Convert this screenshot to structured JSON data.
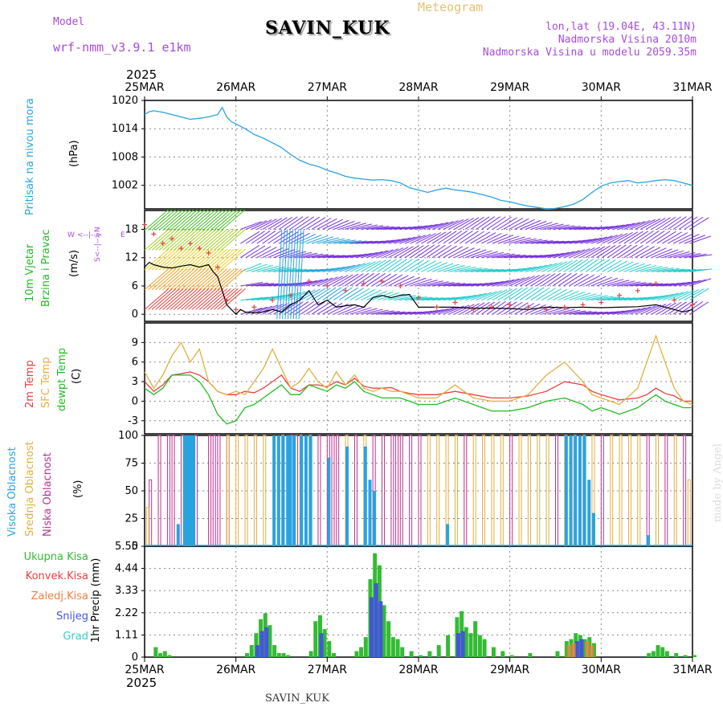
{
  "header": {
    "model_label": "Model",
    "model_name": "wrf-nmm_v3.9.1 e1km",
    "station": "SAVIN_KUK",
    "meteogram": "Meteogram",
    "lonlat": "lon,lat (19.04E, 43.11N)",
    "altitude": "Nadmorska Visina 2010m",
    "model_altitude": "Nadmorska Visina u modelu 2059.35m"
  },
  "footer": {
    "station": "SAVIN_KUK",
    "watermark": "made by Angel"
  },
  "time_axis": {
    "year": "2025",
    "labels": [
      "25MAR",
      "26MAR",
      "27MAR",
      "28MAR",
      "29MAR",
      "30MAR",
      "31MAR"
    ]
  },
  "panel_labels": {
    "pressure": [
      "Pritisak na nivou mora",
      "(hPa)"
    ],
    "wind": [
      "10m Vjetar",
      "Brzina i Pravac",
      "(m/s)"
    ],
    "compass": [
      "W",
      "<--|-->",
      "E",
      "S<--|-->N"
    ],
    "temp": [
      "2m Temp",
      "SFC Temp",
      "dewpt Temp",
      "(C)"
    ],
    "cloud": [
      "Visoka Oblacnost",
      "Srednja Oblacnost",
      "Niska Oblacnost",
      "(%)"
    ],
    "precip_legend": [
      "Ukupna Kisa",
      "Konvek.Kisa",
      "Zaledj.Kisa",
      "Snijeg",
      "Grad"
    ],
    "precip_unit": "1hr Precip (mm)"
  },
  "colors": {
    "pressure": "#29a3e0",
    "wind_speed": "#000000",
    "gust": "#e84040",
    "t2m": "#e84040",
    "tsfc": "#e0b040",
    "dewpt": "#22bb22",
    "cloud_high": "#29a3e0",
    "cloud_mid": "#e0b040",
    "cloud_low": "#c03090",
    "rain_total": "#33bb33",
    "rain_conv": "#e84040",
    "rain_freez": "#f08040",
    "snow": "#4455dd",
    "hail": "#33cccc"
  },
  "chart_data": [
    {
      "type": "line",
      "panel": "pressure",
      "ylabel": "(hPa)",
      "ylim": [
        997,
        1020
      ],
      "yticks": [
        1002,
        1008,
        1014,
        1020
      ],
      "x_days": [
        0,
        0.05,
        0.1,
        0.2,
        0.3,
        0.4,
        0.5,
        0.6,
        0.7,
        0.8,
        0.85,
        0.9,
        0.95,
        1.0,
        1.1,
        1.2,
        1.3,
        1.4,
        1.5,
        1.6,
        1.7,
        1.8,
        1.9,
        2.0,
        2.1,
        2.2,
        2.3,
        2.4,
        2.5,
        2.6,
        2.7,
        2.8,
        2.9,
        3.0,
        3.1,
        3.2,
        3.3,
        3.4,
        3.5,
        3.6,
        3.7,
        3.8,
        3.9,
        4.0,
        4.1,
        4.2,
        4.3,
        4.4,
        4.5,
        4.6,
        4.7,
        4.8,
        4.9,
        5.0,
        5.1,
        5.2,
        5.3,
        5.4,
        5.5,
        5.6,
        5.7,
        5.8,
        5.9,
        6.0
      ],
      "values": [
        1017,
        1017.6,
        1017.8,
        1017.5,
        1017,
        1016.5,
        1016,
        1016.2,
        1016.5,
        1017,
        1018.5,
        1016.5,
        1015.5,
        1015,
        1014,
        1012.8,
        1012,
        1011,
        1010,
        1008.5,
        1007.3,
        1006.5,
        1006,
        1005.2,
        1004.6,
        1003.9,
        1003.5,
        1003.3,
        1003.1,
        1003.2,
        1003,
        1002.5,
        1001.5,
        1001,
        1000.5,
        1001,
        1001.4,
        1001,
        1000.8,
        1000.5,
        1000,
        999.5,
        998.8,
        998.5,
        998,
        997.6,
        997.3,
        997,
        997.1,
        997.5,
        998,
        999,
        1000.5,
        1001.8,
        1002.5,
        1002.8,
        1003,
        1002.5,
        1002.7,
        1003,
        1003.2,
        1003,
        1002.5,
        1002
      ]
    },
    {
      "type": "line",
      "panel": "wind",
      "ylabel": "(m/s)",
      "ylim": [
        -1.5,
        22
      ],
      "yticks": [
        0,
        6,
        12,
        18
      ],
      "series": [
        {
          "x_days": [
            0,
            0.05,
            0.1,
            0.2,
            0.3,
            0.4,
            0.5,
            0.6,
            0.7,
            0.75,
            0.8,
            0.85,
            0.9,
            0.95,
            1.0,
            1.05,
            1.1,
            1.2,
            1.3,
            1.4,
            1.5,
            1.6,
            1.7,
            1.8,
            1.9,
            2.0,
            2.1,
            2.2,
            2.3,
            2.4,
            2.5,
            2.6,
            2.7,
            2.8,
            2.9,
            3.0,
            3.2,
            3.4,
            3.6,
            3.8,
            4.0,
            4.2,
            4.4,
            4.6,
            4.8,
            5.0,
            5.2,
            5.4,
            5.6,
            5.7,
            5.8,
            5.9,
            6.0
          ],
          "values": [
            10,
            11,
            10.5,
            10,
            9.8,
            10.2,
            10.5,
            10,
            10.5,
            9,
            8,
            5,
            2,
            1,
            0,
            1,
            0.5,
            0.3,
            0.5,
            1,
            0.5,
            2,
            3,
            5,
            2,
            3,
            1.5,
            1.8,
            2,
            1.5,
            3.5,
            4,
            3.5,
            4,
            4.2,
            1.5,
            1.5,
            1.5,
            1.3,
            1.3,
            1.2,
            1,
            1.5,
            1.4,
            1.5,
            1.4,
            1.5,
            1.6,
            2,
            1.5,
            1,
            0.5,
            1
          ]
        },
        {
          "x_days": [
            0,
            0.1,
            0.2,
            0.3,
            0.4,
            0.5,
            0.6,
            0.7,
            0.8,
            0.9,
            1.0,
            1.2,
            1.4,
            1.6,
            1.8,
            2.0,
            2.2,
            2.4,
            2.6,
            2.8,
            3.0,
            3.2,
            3.4,
            3.6,
            3.8,
            4.0,
            4.2,
            4.4,
            4.6,
            4.8,
            5.0,
            5.2,
            5.4,
            5.6,
            5.8,
            6.0
          ],
          "values": [
            19,
            17,
            15,
            16,
            14,
            15,
            14,
            13,
            10,
            3,
            1,
            1.5,
            3,
            4,
            7,
            6,
            5,
            6.5,
            7,
            6,
            3.5,
            1.5,
            2.5,
            1,
            1.5,
            2,
            1.5,
            1,
            1.5,
            2,
            2.5,
            4,
            5,
            6.5,
            3,
            2
          ]
        }
      ]
    },
    {
      "type": "line",
      "panel": "temperature",
      "ylabel": "(C)",
      "ylim": [
        -5,
        12
      ],
      "yticks": [
        -3,
        0,
        3,
        6,
        9
      ],
      "x_days": [
        0,
        0.1,
        0.2,
        0.3,
        0.4,
        0.5,
        0.6,
        0.7,
        0.8,
        0.9,
        1.0,
        1.1,
        1.2,
        1.3,
        1.4,
        1.5,
        1.6,
        1.7,
        1.8,
        1.9,
        2.0,
        2.1,
        2.2,
        2.3,
        2.4,
        2.5,
        2.6,
        2.7,
        2.8,
        2.9,
        3.0,
        3.2,
        3.4,
        3.6,
        3.8,
        4.0,
        4.2,
        4.4,
        4.6,
        4.8,
        4.9,
        5.0,
        5.2,
        5.4,
        5.5,
        5.6,
        5.7,
        5.8,
        5.9,
        6.0
      ],
      "series": [
        {
          "name": "2m Temp",
          "values": [
            3,
            1.5,
            2.5,
            4,
            4.2,
            4.5,
            4,
            3,
            1.5,
            1,
            1,
            1.5,
            1.3,
            2,
            3,
            4,
            2,
            1.5,
            2.5,
            2.5,
            2.2,
            3,
            2.5,
            3.5,
            2.3,
            2,
            2,
            2.1,
            1.5,
            1.2,
            1,
            1,
            1.5,
            1,
            0.5,
            0.5,
            0.8,
            1.5,
            3,
            2.5,
            1.5,
            1,
            0.2,
            0.5,
            1,
            2,
            1.2,
            0.8,
            0,
            0
          ]
        },
        {
          "name": "SFC Temp",
          "values": [
            4.5,
            2,
            4,
            7,
            9,
            6,
            8,
            3,
            1.5,
            1,
            1.5,
            1,
            3,
            5,
            8,
            5,
            2,
            3,
            5,
            3,
            2,
            4.5,
            2.5,
            4,
            2,
            1.5,
            2,
            1.5,
            1.5,
            1,
            0.5,
            0.5,
            2.5,
            0.5,
            0,
            0,
            1,
            4,
            6,
            3,
            1,
            0.5,
            -0.5,
            2,
            6,
            10,
            6,
            2,
            0,
            -0.5
          ]
        },
        {
          "name": "dewpt Temp",
          "values": [
            2,
            1,
            2,
            4,
            4,
            4,
            3,
            1,
            -2,
            -3.5,
            -3,
            -1,
            -0.5,
            0.5,
            1.5,
            2.5,
            1,
            1,
            2.5,
            2,
            1.5,
            2.5,
            2,
            3,
            1.5,
            1,
            0.5,
            0.5,
            0.5,
            0,
            -0.5,
            -0.5,
            0.5,
            -0.5,
            -1.5,
            -1.5,
            -1,
            0,
            0.5,
            -0.5,
            -1.5,
            -1,
            -2,
            -1,
            0,
            1,
            0,
            -0.5,
            -1,
            -1
          ]
        }
      ]
    },
    {
      "type": "bar",
      "panel": "cloud",
      "ylabel": "(%)",
      "ylim": [
        0,
        100
      ],
      "yticks": [
        0,
        25,
        50,
        75,
        100
      ],
      "series": [
        {
          "name": "Niska Oblacnost",
          "x_days": [
            0.05,
            0.15,
            0.25,
            0.3,
            0.4,
            0.55,
            0.7,
            0.75,
            0.8,
            0.9,
            1.6,
            1.65,
            1.9,
            2.0,
            2.05,
            2.1,
            2.3,
            2.5,
            2.6,
            2.7,
            2.75,
            2.8,
            2.9,
            3.0,
            3.5,
            4.0,
            4.5,
            5.0,
            5.5,
            5.7,
            5.9
          ],
          "values": [
            60,
            100,
            100,
            100,
            100,
            100,
            100,
            100,
            100,
            100,
            100,
            100,
            100,
            100,
            100,
            100,
            100,
            100,
            100,
            100,
            100,
            100,
            100,
            100,
            100,
            100,
            100,
            100,
            100,
            100,
            100
          ]
        },
        {
          "name": "Srednja Oblacnost",
          "x_days": [
            0.02,
            0.9,
            1.0,
            1.1,
            1.2,
            1.3,
            1.5,
            1.7,
            1.8,
            2.2,
            2.4,
            3.1,
            3.2,
            3.3,
            3.4,
            3.6,
            3.7,
            3.8,
            3.9,
            4.1,
            4.2,
            4.3,
            4.4,
            4.6,
            4.7,
            4.8,
            4.9,
            5.1,
            5.2,
            5.3,
            5.4,
            5.6,
            5.8,
            5.95
          ],
          "values": [
            35,
            100,
            100,
            100,
            100,
            100,
            100,
            100,
            100,
            100,
            100,
            100,
            100,
            100,
            100,
            100,
            100,
            100,
            100,
            100,
            100,
            100,
            100,
            100,
            100,
            100,
            100,
            100,
            100,
            100,
            100,
            100,
            100,
            60
          ]
        },
        {
          "name": "Visoka Oblacnost",
          "x_days": [
            0.35,
            0.42,
            0.45,
            0.48,
            0.5,
            0.52,
            1.4,
            1.45,
            1.5,
            1.55,
            1.58,
            1.62,
            1.7,
            1.75,
            1.8,
            2.0,
            2.2,
            2.4,
            2.45,
            2.5,
            3.3,
            4.6,
            4.65,
            4.7,
            4.75,
            4.8,
            4.85,
            4.9,
            5.5
          ],
          "values": [
            20,
            100,
            100,
            100,
            100,
            100,
            100,
            100,
            100,
            100,
            100,
            100,
            100,
            100,
            100,
            80,
            90,
            90,
            60,
            50,
            20,
            100,
            100,
            100,
            100,
            100,
            60,
            30,
            10
          ]
        }
      ]
    },
    {
      "type": "bar",
      "panel": "precipitation",
      "ylabel": "1hr Precip (mm)",
      "ylim": [
        0,
        5.55
      ],
      "yticks": [
        0,
        1.11,
        2.22,
        3.33,
        4.44,
        5.55
      ],
      "series": [
        {
          "name": "Ukupna Kisa",
          "x_days": [
            0.1,
            0.15,
            0.2,
            0.25,
            1.1,
            1.15,
            1.2,
            1.25,
            1.3,
            1.35,
            1.4,
            1.45,
            1.5,
            1.55,
            1.8,
            1.85,
            1.9,
            1.95,
            2.0,
            2.05,
            2.3,
            2.35,
            2.4,
            2.45,
            2.5,
            2.55,
            2.6,
            2.65,
            2.7,
            2.75,
            2.8,
            2.9,
            3.0,
            3.1,
            3.2,
            3.3,
            3.4,
            3.45,
            3.5,
            3.55,
            3.6,
            3.65,
            3.7,
            3.8,
            3.9,
            4.0,
            4.2,
            4.5,
            4.6,
            4.65,
            4.7,
            4.75,
            4.8,
            4.85,
            4.9,
            5.5,
            5.55,
            5.6,
            5.65,
            5.7,
            5.8,
            5.9,
            6.0
          ],
          "values": [
            0.5,
            0.2,
            0.3,
            0.1,
            0.2,
            0.6,
            1.2,
            1.9,
            2.2,
            1.6,
            0.6,
            0.2,
            0.2,
            0.1,
            0.3,
            1.8,
            2.1,
            1.4,
            0.8,
            0.2,
            0.3,
            0.5,
            1.0,
            3.9,
            5.2,
            4.6,
            2.6,
            1.8,
            1.0,
            0.9,
            0.5,
            0.3,
            0.1,
            0.3,
            0.6,
            1.1,
            2.0,
            2.3,
            1.5,
            1.2,
            1.8,
            1.1,
            0.9,
            0.5,
            0.3,
            0.1,
            0.2,
            0.3,
            0.8,
            0.9,
            1.2,
            1.1,
            0.9,
            1.0,
            0.7,
            0.2,
            0.3,
            0.6,
            0.5,
            0.3,
            0.2,
            0.1,
            0.1
          ]
        },
        {
          "name": "Snijeg",
          "x_days": [
            1.2,
            1.25,
            1.3,
            1.9,
            2.45,
            2.5,
            2.55,
            3.4,
            3.45,
            4.7,
            4.75
          ],
          "values": [
            0.6,
            1.3,
            1.5,
            1.2,
            3.0,
            3.7,
            2.8,
            1.2,
            1.3,
            0.8,
            0.9
          ]
        },
        {
          "name": "Zaledj.Kisa",
          "x_days": [
            4.6,
            4.65,
            4.8,
            4.85
          ],
          "values": [
            0.6,
            0.7,
            0.8,
            0.6
          ]
        }
      ]
    }
  ]
}
